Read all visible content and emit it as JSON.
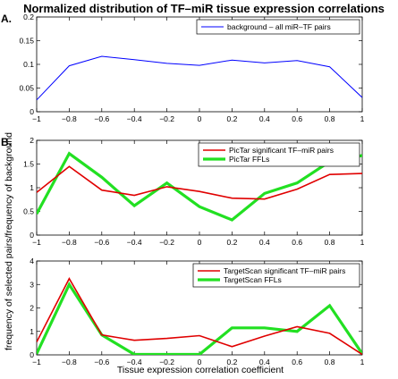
{
  "figure": {
    "title": "Normalized distribution of TF–miR tissue expression correlations",
    "xlabel": "Tissue expression correlation coefficient",
    "ylabel": "frequency of selected pairs/frequency of background"
  },
  "chart_data": [
    {
      "type": "line",
      "panel_label": "A.",
      "title": "",
      "xlabel": "",
      "ylabel": "",
      "xlim": [
        -1,
        1
      ],
      "ylim": [
        0,
        0.2
      ],
      "x_ticks": [
        -1,
        -0.8,
        -0.6,
        -0.4,
        -0.2,
        0,
        0.2,
        0.4,
        0.6,
        0.8,
        1
      ],
      "x_tick_labels": [
        "−1",
        "−0.8",
        "−0.6",
        "−0.4",
        "−0.2",
        "0",
        "0.2",
        "0.4",
        "0.6",
        "0.8",
        "1"
      ],
      "y_ticks": [
        0,
        0.05,
        0.1,
        0.15,
        0.2
      ],
      "y_tick_labels": [
        "0",
        "0.05",
        "0.1",
        "0.15",
        "0.2"
      ],
      "grid": false,
      "legend_position": "top-right",
      "series": [
        {
          "name": "background – all miR–TF pairs",
          "color": "#0000ff",
          "width": 1,
          "x": [
            -1,
            -0.8,
            -0.6,
            -0.4,
            -0.2,
            0,
            0.2,
            0.4,
            0.6,
            0.8,
            1
          ],
          "y": [
            0.025,
            0.097,
            0.117,
            0.11,
            0.102,
            0.098,
            0.109,
            0.103,
            0.108,
            0.095,
            0.03
          ]
        }
      ]
    },
    {
      "type": "line",
      "panel_label": "B.",
      "title": "",
      "xlabel": "",
      "ylabel": "",
      "xlim": [
        -1,
        1
      ],
      "ylim": [
        0,
        2
      ],
      "x_ticks": [
        -1,
        -0.8,
        -0.6,
        -0.4,
        -0.2,
        0,
        0.2,
        0.4,
        0.6,
        0.8,
        1
      ],
      "x_tick_labels": [
        "−1",
        "−0.8",
        "−0.6",
        "−0.4",
        "−0.2",
        "0",
        "0.2",
        "0.4",
        "0.6",
        "0.8",
        "1"
      ],
      "y_ticks": [
        0,
        0.5,
        1,
        1.5,
        2
      ],
      "y_tick_labels": [
        "0",
        "0.5",
        "1",
        "1.5",
        "2"
      ],
      "grid": false,
      "legend_position": "top-right",
      "series": [
        {
          "name": "PicTar significant TF–miR pairs",
          "color": "#e00000",
          "width": 1.6,
          "x": [
            -1,
            -0.8,
            -0.6,
            -0.4,
            -0.2,
            0,
            0.2,
            0.4,
            0.6,
            0.8,
            1
          ],
          "y": [
            0.9,
            1.45,
            0.95,
            0.84,
            1.02,
            0.92,
            0.78,
            0.76,
            0.97,
            1.28,
            1.3
          ]
        },
        {
          "name": "PicTar FFLs",
          "color": "#22e022",
          "width": 3.2,
          "x": [
            -1,
            -0.8,
            -0.6,
            -0.4,
            -0.2,
            0,
            0.2,
            0.4,
            0.6,
            0.8,
            1
          ],
          "y": [
            0.45,
            1.72,
            1.22,
            0.62,
            1.1,
            0.6,
            0.32,
            0.88,
            1.1,
            1.55,
            1.68
          ]
        }
      ]
    },
    {
      "type": "line",
      "panel_label": "",
      "title": "",
      "xlabel": "Tissue expression correlation coefficient",
      "ylabel": "",
      "xlim": [
        -1,
        1
      ],
      "ylim": [
        0,
        4
      ],
      "x_ticks": [
        -1,
        -0.8,
        -0.6,
        -0.4,
        -0.2,
        0,
        0.2,
        0.4,
        0.6,
        0.8,
        1
      ],
      "x_tick_labels": [
        "−1",
        "−0.8",
        "−0.6",
        "−0.4",
        "−0.2",
        "0",
        "0.2",
        "0.4",
        "0.6",
        "0.8",
        "1"
      ],
      "y_ticks": [
        0,
        1,
        2,
        3,
        4
      ],
      "y_tick_labels": [
        "0",
        "1",
        "2",
        "3",
        "4"
      ],
      "grid": false,
      "legend_position": "top-right",
      "series": [
        {
          "name": "TargetScan significant TF–miR pairs",
          "color": "#e00000",
          "width": 1.6,
          "x": [
            -1,
            -0.8,
            -0.6,
            -0.4,
            -0.2,
            0,
            0.2,
            0.4,
            0.6,
            0.8,
            1
          ],
          "y": [
            0.55,
            3.25,
            0.85,
            0.62,
            0.7,
            0.82,
            0.35,
            0.8,
            1.2,
            0.92,
            0.02
          ]
        },
        {
          "name": "TargetScan FFLs",
          "color": "#22e022",
          "width": 3.2,
          "x": [
            -1,
            -0.8,
            -0.6,
            -0.4,
            -0.2,
            0,
            0.2,
            0.4,
            0.6,
            0.8,
            1
          ],
          "y": [
            0.05,
            3.0,
            0.85,
            0.02,
            0.02,
            0.02,
            1.15,
            1.15,
            1.0,
            2.1,
            0.05
          ]
        }
      ]
    }
  ]
}
